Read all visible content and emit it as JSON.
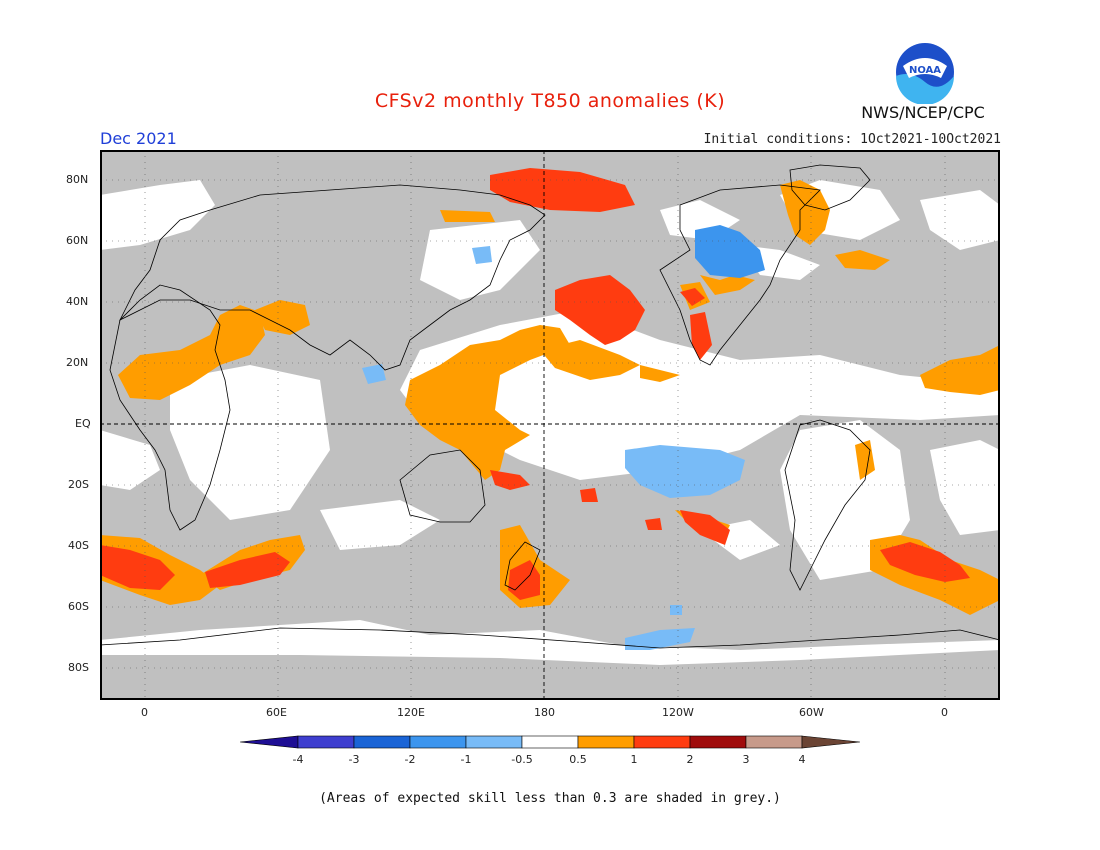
{
  "header": {
    "title": "CFSv2 monthly T850 anomalies (K)",
    "valid_month": "Dec 2021",
    "initial_conditions": "Initial conditions: 1Oct2021-10Oct2021",
    "agency": "NWS/NCEP/CPC",
    "logo_text": "NOAA"
  },
  "map": {
    "lat_labels": [
      "80N",
      "60N",
      "40N",
      "20N",
      "EQ",
      "20S",
      "40S",
      "60S",
      "80S"
    ],
    "lon_labels": [
      "0",
      "60E",
      "120E",
      "180",
      "120W",
      "60W",
      "0"
    ],
    "no_skill_color": "#c0c0c0",
    "ocean_color": "#ffffff"
  },
  "legend": {
    "tick_labels": [
      "-4",
      "-3",
      "-2",
      "-1",
      "-0.5",
      "0.5",
      "1",
      "2",
      "3",
      "4"
    ],
    "colors": [
      "#1e0e94",
      "#3e3ecf",
      "#1a64d6",
      "#3c95ee",
      "#78bbf7",
      "#ffffff",
      "#ff9d00",
      "#ff3c10",
      "#a00c0c",
      "#c79a8a",
      "#6b4434"
    ],
    "note": "(Areas of expected skill less than 0.3 are shaded in grey.)"
  }
}
